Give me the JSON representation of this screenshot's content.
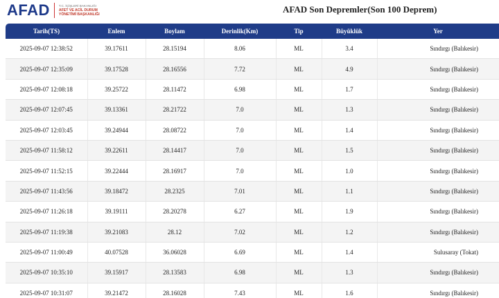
{
  "header": {
    "logo_text": "AFAD",
    "logo_sub_lines": [
      "T.C. İÇİŞLERİ BAKANLIĞI",
      "AFET VE ACİL DURUM",
      "YÖNETİMİ BAŞKANLIĞI"
    ],
    "page_title": "AFAD Son Depremler(Son 100 Deprem)",
    "brand_color": "#1f3c88"
  },
  "table": {
    "columns": [
      "Tarih(TS)",
      "Enlem",
      "Boylam",
      "Derinlik(Km)",
      "Tip",
      "Büyüklük",
      "Yer"
    ],
    "rows": [
      [
        "2025-09-07 12:38:52",
        "39.17611",
        "28.15194",
        "8.06",
        "ML",
        "3.4",
        "Sındırgı (Balıkesir)"
      ],
      [
        "2025-09-07 12:35:09",
        "39.17528",
        "28.16556",
        "7.72",
        "ML",
        "4.9",
        "Sındırgı (Balıkesir)"
      ],
      [
        "2025-09-07 12:08:18",
        "39.25722",
        "28.11472",
        "6.98",
        "ML",
        "1.7",
        "Sındırgı (Balıkesir)"
      ],
      [
        "2025-09-07 12:07:45",
        "39.13361",
        "28.21722",
        "7.0",
        "ML",
        "1.3",
        "Sındırgı (Balıkesir)"
      ],
      [
        "2025-09-07 12:03:45",
        "39.24944",
        "28.08722",
        "7.0",
        "ML",
        "1.4",
        "Sındırgı (Balıkesir)"
      ],
      [
        "2025-09-07 11:58:12",
        "39.22611",
        "28.14417",
        "7.0",
        "ML",
        "1.5",
        "Sındırgı (Balıkesir)"
      ],
      [
        "2025-09-07 11:52:15",
        "39.22444",
        "28.16917",
        "7.0",
        "ML",
        "1.0",
        "Sındırgı (Balıkesir)"
      ],
      [
        "2025-09-07 11:43:56",
        "39.18472",
        "28.2325",
        "7.01",
        "ML",
        "1.1",
        "Sındırgı (Balıkesir)"
      ],
      [
        "2025-09-07 11:26:18",
        "39.19111",
        "28.20278",
        "6.27",
        "ML",
        "1.9",
        "Sındırgı (Balıkesir)"
      ],
      [
        "2025-09-07 11:19:38",
        "39.21083",
        "28.12",
        "7.02",
        "ML",
        "1.2",
        "Sındırgı (Balıkesir)"
      ],
      [
        "2025-09-07 11:00:49",
        "40.07528",
        "36.06028",
        "6.69",
        "ML",
        "1.4",
        "Sulusaray (Tokat)"
      ],
      [
        "2025-09-07 10:35:10",
        "39.15917",
        "28.13583",
        "6.98",
        "ML",
        "1.3",
        "Sındırgı (Balıkesir)"
      ],
      [
        "2025-09-07 10:31:07",
        "39.21472",
        "28.16028",
        "7.43",
        "ML",
        "1.6",
        "Sındırgı (Balıkesir)"
      ]
    ]
  }
}
